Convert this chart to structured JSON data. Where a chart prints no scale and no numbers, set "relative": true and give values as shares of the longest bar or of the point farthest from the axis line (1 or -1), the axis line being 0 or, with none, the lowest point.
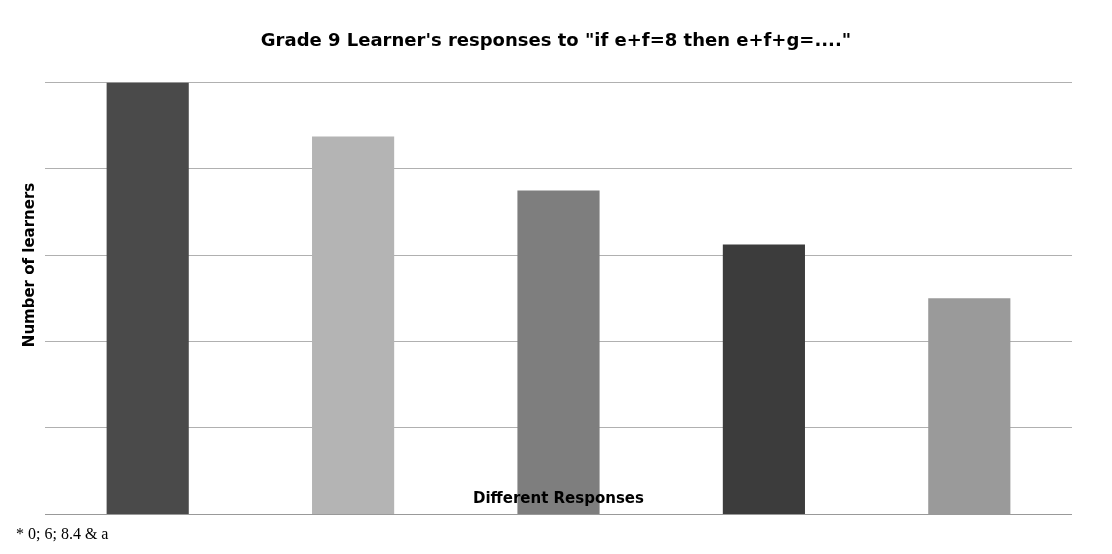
{
  "chart_data": {
    "type": "bar",
    "title": "Grade 9 Learner's responses to \"if e+f=8 then e+f+g=....\"",
    "xlabel": "Different Responses",
    "ylabel": "Number of learners",
    "categories": [
      null,
      null,
      null,
      null,
      null
    ],
    "values": [
      1,
      0.875,
      0.75,
      0.625,
      0.5
    ],
    "colors": [
      "#4a4a4a",
      "#b4b4b4",
      "#7e7e7e",
      "#3c3c3c",
      "#9a9a9a"
    ],
    "relative": true,
    "grid": "y",
    "annotations": [
      "* 0; 6; 8.4 & a"
    ]
  }
}
